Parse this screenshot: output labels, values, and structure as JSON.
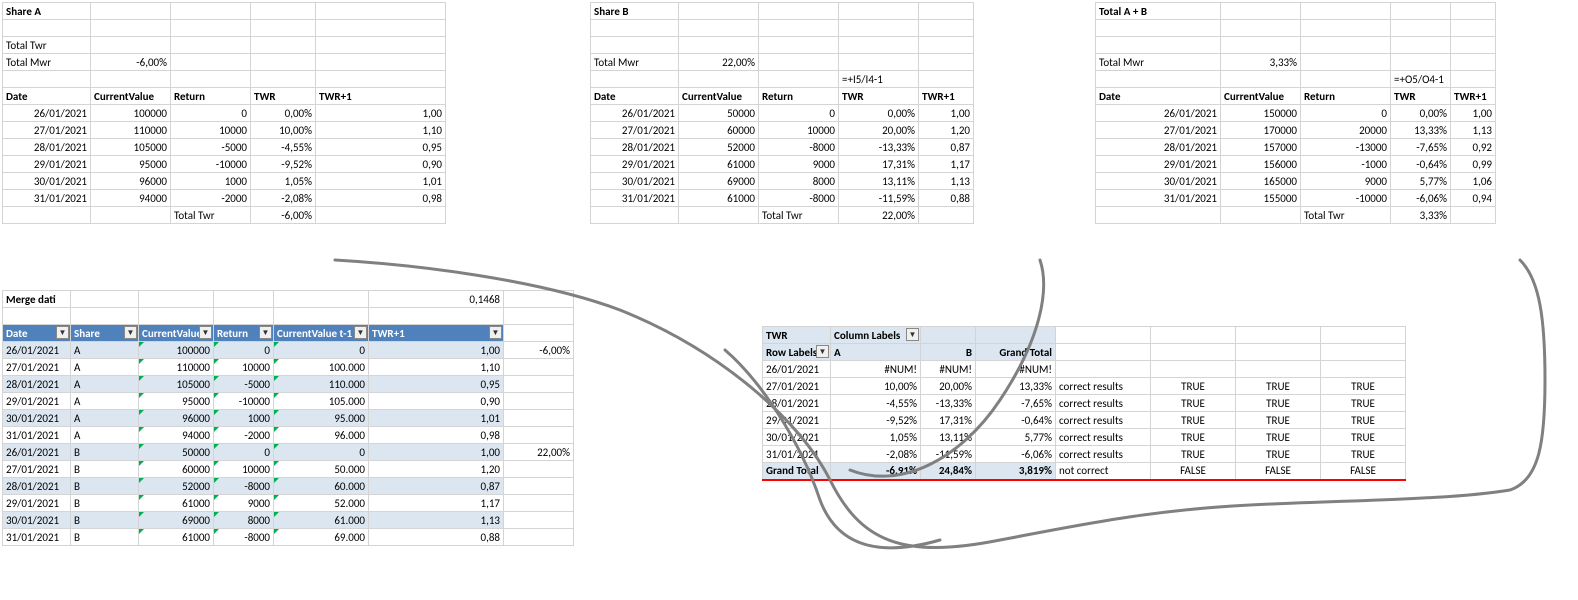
{
  "shareA": {
    "title": "Share A",
    "totalTwrLabel": "Total Twr",
    "totalMwrLabel": "Total Mwr",
    "totalMwr": "-6,00%",
    "headers": [
      "Date",
      "CurrentValue",
      "Return",
      "TWR",
      "TWR+1"
    ],
    "rows": [
      [
        "26/01/2021",
        "100000",
        "0",
        "0,00%",
        "1,00"
      ],
      [
        "27/01/2021",
        "110000",
        "10000",
        "10,00%",
        "1,10"
      ],
      [
        "28/01/2021",
        "105000",
        "-5000",
        "-4,55%",
        "0,95"
      ],
      [
        "29/01/2021",
        "95000",
        "-10000",
        "-9,52%",
        "0,90"
      ],
      [
        "30/01/2021",
        "96000",
        "1000",
        "1,05%",
        "1,01"
      ],
      [
        "31/01/2021",
        "94000",
        "-2000",
        "-2,08%",
        "0,98"
      ]
    ],
    "footerLabel": "Total Twr",
    "footerVal": "-6,00%"
  },
  "shareB": {
    "title": "Share B",
    "totalMwrLabel": "Total Mwr",
    "totalMwr": "22,00%",
    "formula": "=+I5/I4-1",
    "headers": [
      "Date",
      "CurrentValue",
      "Return",
      "TWR",
      "TWR+1"
    ],
    "rows": [
      [
        "26/01/2021",
        "50000",
        "0",
        "0,00%",
        "1,00"
      ],
      [
        "27/01/2021",
        "60000",
        "10000",
        "20,00%",
        "1,20"
      ],
      [
        "28/01/2021",
        "52000",
        "-8000",
        "-13,33%",
        "0,87"
      ],
      [
        "29/01/2021",
        "61000",
        "9000",
        "17,31%",
        "1,17"
      ],
      [
        "30/01/2021",
        "69000",
        "8000",
        "13,11%",
        "1,13"
      ],
      [
        "31/01/2021",
        "61000",
        "-8000",
        "-11,59%",
        "0,88"
      ]
    ],
    "footerLabel": "Total Twr",
    "footerVal": "22,00%"
  },
  "totalAB": {
    "title": "Total A + B",
    "totalMwrLabel": "Total Mwr",
    "totalMwr": "3,33%",
    "formula": "=+O5/O4-1",
    "headers": [
      "Date",
      "CurrentValue",
      "Return",
      "TWR",
      "TWR+1"
    ],
    "rows": [
      [
        "26/01/2021",
        "150000",
        "0",
        "0,00%",
        "1,00"
      ],
      [
        "27/01/2021",
        "170000",
        "20000",
        "13,33%",
        "1,13"
      ],
      [
        "28/01/2021",
        "157000",
        "-13000",
        "-7,65%",
        "0,92"
      ],
      [
        "29/01/2021",
        "156000",
        "-1000",
        "-0,64%",
        "0,99"
      ],
      [
        "30/01/2021",
        "165000",
        "9000",
        "5,77%",
        "1,06"
      ],
      [
        "31/01/2021",
        "155000",
        "-10000",
        "-6,06%",
        "0,94"
      ]
    ],
    "footerLabel": "Total Twr",
    "footerVal": "3,33%"
  },
  "merge": {
    "title": "Merge dati",
    "sideVal": "0,1468",
    "headers": [
      "Date",
      "Share",
      "CurrentValue",
      "Return",
      "CurrentValue t-1",
      "TWR+1"
    ],
    "rows": [
      [
        "26/01/2021",
        "A",
        "100000",
        "0",
        "0",
        "1,00",
        "-6,00%"
      ],
      [
        "27/01/2021",
        "A",
        "110000",
        "10000",
        "100.000",
        "1,10",
        ""
      ],
      [
        "28/01/2021",
        "A",
        "105000",
        "-5000",
        "110.000",
        "0,95",
        ""
      ],
      [
        "29/01/2021",
        "A",
        "95000",
        "-10000",
        "105.000",
        "0,90",
        ""
      ],
      [
        "30/01/2021",
        "A",
        "96000",
        "1000",
        "95.000",
        "1,01",
        ""
      ],
      [
        "31/01/2021",
        "A",
        "94000",
        "-2000",
        "96.000",
        "0,98",
        ""
      ],
      [
        "26/01/2021",
        "B",
        "50000",
        "0",
        "0",
        "1,00",
        "22,00%"
      ],
      [
        "27/01/2021",
        "B",
        "60000",
        "10000",
        "50.000",
        "1,20",
        ""
      ],
      [
        "28/01/2021",
        "B",
        "52000",
        "-8000",
        "60.000",
        "0,87",
        ""
      ],
      [
        "29/01/2021",
        "B",
        "61000",
        "9000",
        "52.000",
        "1,17",
        ""
      ],
      [
        "30/01/2021",
        "B",
        "69000",
        "8000",
        "61.000",
        "1,13",
        ""
      ],
      [
        "31/01/2021",
        "B",
        "61000",
        "-8000",
        "69.000",
        "0,88",
        ""
      ]
    ]
  },
  "pivot": {
    "twr": "TWR",
    "colLabels": "Column Labels",
    "rowLabels": "Row Labels",
    "cols": [
      "A",
      "B",
      "Grand Total"
    ],
    "rows": [
      [
        "26/01/2021",
        "#NUM!",
        "#NUM!",
        "#NUM!",
        "",
        "",
        "",
        ""
      ],
      [
        "27/01/2021",
        "10,00%",
        "20,00%",
        "13,33%",
        "correct results",
        "TRUE",
        "TRUE",
        "TRUE"
      ],
      [
        "28/01/2021",
        "-4,55%",
        "-13,33%",
        "-7,65%",
        "correct results",
        "TRUE",
        "TRUE",
        "TRUE"
      ],
      [
        "29/01/2021",
        "-9,52%",
        "17,31%",
        "-0,64%",
        "correct results",
        "TRUE",
        "TRUE",
        "TRUE"
      ],
      [
        "30/01/2021",
        "1,05%",
        "13,11%",
        "5,77%",
        "correct results",
        "TRUE",
        "TRUE",
        "TRUE"
      ],
      [
        "31/01/2021",
        "-2,08%",
        "-11,59%",
        "-6,06%",
        "correct results",
        "TRUE",
        "TRUE",
        "TRUE"
      ]
    ],
    "grandTotal": [
      "Grand Total",
      "-6,91%",
      "24,84%",
      "3,819%",
      "not correct",
      "FALSE",
      "FALSE",
      "FALSE"
    ]
  },
  "colWidths": {
    "shareA": [
      88,
      80,
      80,
      65,
      130
    ],
    "shareB": [
      88,
      80,
      80,
      80,
      55
    ],
    "totalAB": [
      125,
      80,
      90,
      60,
      45
    ],
    "merge": [
      68,
      68,
      75,
      60,
      95,
      135,
      70
    ],
    "pivot": [
      68,
      90,
      55,
      80,
      95,
      85,
      85,
      85
    ]
  },
  "colors": {
    "filterHeader": "#4f81bd",
    "band": "#dce6f1",
    "redline": "#ff0000",
    "greenTri": "#00b050",
    "scribble": "#808080"
  }
}
